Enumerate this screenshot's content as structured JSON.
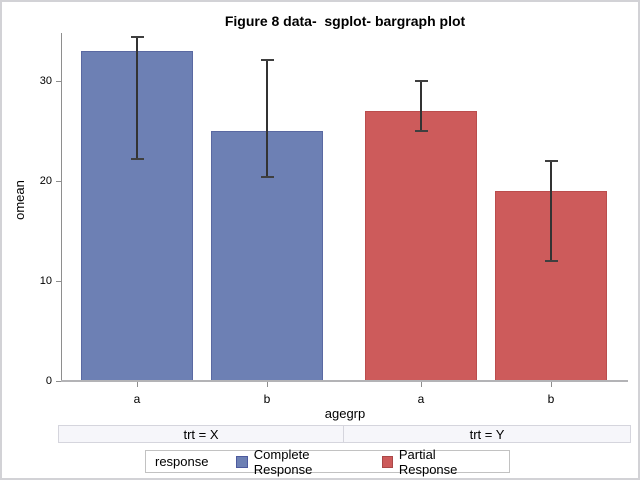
{
  "title": "Figure 8 data-  sgplot- bargraph plot",
  "chart_data": {
    "type": "bar",
    "title": "Figure 8 data-  sgplot- bargraph plot",
    "ylabel": "omean",
    "xlabel": "agegrp",
    "ylim": [
      0,
      34.8
    ],
    "yticks": [
      0,
      10,
      20,
      30
    ],
    "grid": false,
    "legend_position": "bottom",
    "groups": [
      {
        "label": "trt = X",
        "series": "Complete Response",
        "fill_color": "#6d80b4",
        "border_color": "#5a69a2",
        "bars": [
          {
            "category": "a",
            "mean": 33,
            "lower": 22.2,
            "upper": 34.4
          },
          {
            "category": "b",
            "mean": 25,
            "lower": 20.4,
            "upper": 32.1
          }
        ]
      },
      {
        "label": "trt = Y",
        "series": "Partial Response",
        "fill_color": "#cd5b5b",
        "border_color": "#bb4d4d",
        "bars": [
          {
            "category": "a",
            "mean": 27,
            "lower": 25,
            "upper": 30
          },
          {
            "category": "b",
            "mean": 19,
            "lower": 12,
            "upper": 22
          }
        ]
      }
    ],
    "legend": {
      "title": "response",
      "entries": [
        {
          "label": "Complete Response",
          "color": "#6d80b4",
          "border": "#4d5a9e"
        },
        {
          "label": "Partial Response",
          "color": "#cd5b5b",
          "border": "#aa4848"
        }
      ]
    },
    "error_bar_color": "#333333",
    "axis_line_color": "#8e8e8e",
    "baseline_color": "#b3b3b6",
    "band_background": "#f6f6fa"
  }
}
